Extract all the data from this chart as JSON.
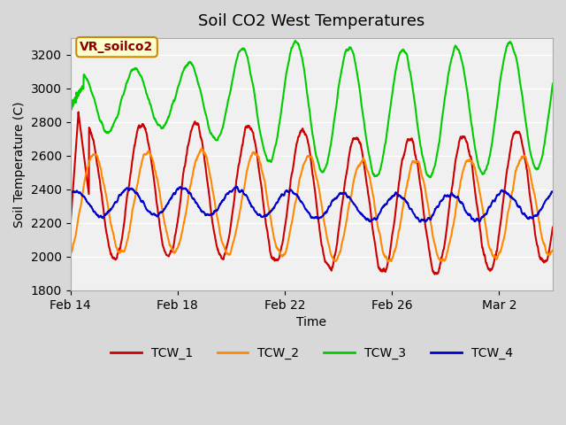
{
  "title": "Soil CO2 West Temperatures",
  "xlabel": "Time",
  "ylabel": "Soil Temperature (C)",
  "ylim": [
    1800,
    3300
  ],
  "xlim_days": [
    0,
    18
  ],
  "yticks": [
    1800,
    2000,
    2200,
    2400,
    2600,
    2800,
    3000,
    3200
  ],
  "xtick_labels": [
    "Feb 14",
    "Feb 18",
    "Feb 22",
    "Feb 26",
    "Mar 2"
  ],
  "xtick_positions": [
    0,
    4,
    8,
    12,
    16
  ],
  "colors": {
    "TCW_1": "#cc0000",
    "TCW_2": "#ff8800",
    "TCW_3": "#00cc00",
    "TCW_4": "#0000cc"
  },
  "bg_color": "#e8e8e8",
  "plot_bg": "#f0f0f0",
  "annotation_box": {
    "text": "VR_soilco2",
    "bg": "#ffffcc",
    "edge": "#cc8800"
  },
  "legend": [
    "TCW_1",
    "TCW_2",
    "TCW_3",
    "TCW_4"
  ],
  "linewidth": 1.5
}
